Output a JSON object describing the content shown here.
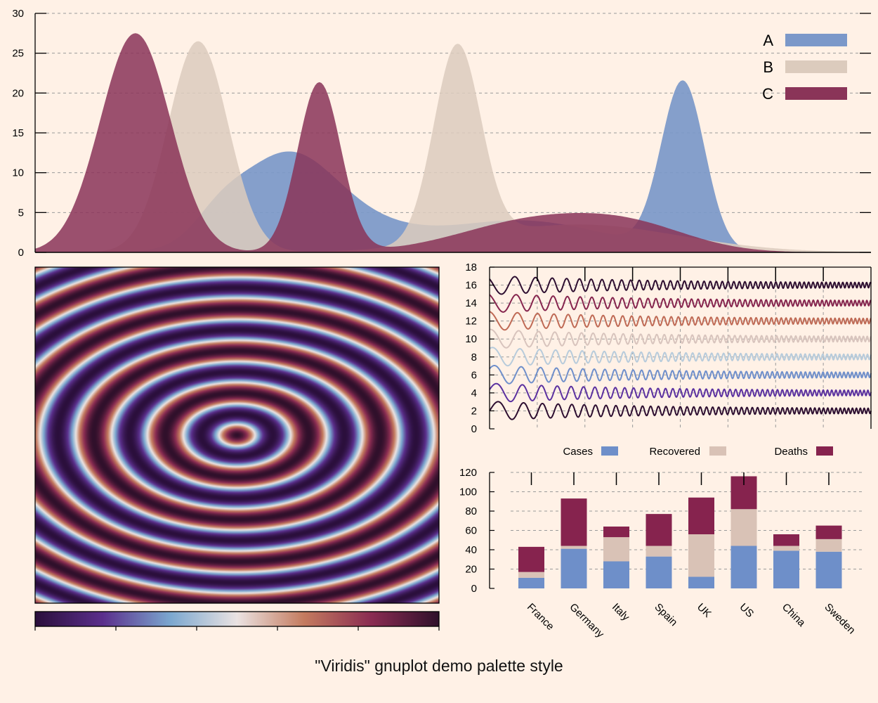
{
  "figure_title": "\"Viridis\" gnuplot demo palette style",
  "colors": {
    "background": "#fff1e6",
    "A": "#7b98c9",
    "B": "#dccbbd",
    "C": "#8a3458",
    "cases": "#6e8fc9",
    "recovered": "#d9c2b6",
    "deaths": "#86234e",
    "axis": "#000000",
    "grid": "#9a9a9a"
  },
  "chart_data": [
    {
      "id": "distributions",
      "type": "area",
      "title": "",
      "xlabel": "",
      "ylabel": "",
      "x_range": [
        0,
        100
      ],
      "ylim": [
        0,
        30
      ],
      "yticks": [
        "0",
        "5",
        "10",
        "15",
        "20",
        "25",
        "30"
      ],
      "grid": true,
      "legend_position": "top-right",
      "series": [
        {
          "name": "A",
          "components": [
            {
              "center": 30,
              "width": 6.0,
              "height": 12.0
            },
            {
              "center": 22,
              "width": 3.0,
              "height": 2.5
            },
            {
              "center": 58,
              "width": 10.0,
              "height": 4.0
            },
            {
              "center": 77.5,
              "width": 2.6,
              "height": 21.0
            },
            {
              "center": 40,
              "width": 6.0,
              "height": 2.0
            }
          ]
        },
        {
          "name": "B",
          "components": [
            {
              "center": 19.5,
              "width": 3.6,
              "height": 26.5
            },
            {
              "center": 50.5,
              "width": 2.8,
              "height": 24.5
            },
            {
              "center": 65,
              "width": 12.0,
              "height": 3.5
            }
          ]
        },
        {
          "name": "C",
          "components": [
            {
              "center": 12,
              "width": 4.2,
              "height": 27.5
            },
            {
              "center": 34,
              "width": 2.6,
              "height": 21.3
            },
            {
              "center": 60,
              "width": 9.0,
              "height": 4.0
            },
            {
              "center": 72,
              "width": 7.0,
              "height": 2.5
            }
          ]
        }
      ]
    },
    {
      "id": "interference",
      "type": "heatmap",
      "function": "cos(r/4), r = sqrt(x^2/2 + y^2) over x,y in [-100,100]",
      "colorbar": {
        "ticks": 6,
        "labels": []
      },
      "palette": [
        "#2b0f3c",
        "#5b2f8c",
        "#7ba7cf",
        "#ebe3e2",
        "#c47b5f",
        "#8a2c52",
        "#30102b"
      ]
    },
    {
      "id": "damped-waves",
      "type": "line",
      "ylim": [
        0,
        18
      ],
      "yticks": [
        "0",
        "2",
        "4",
        "6",
        "8",
        "10",
        "12",
        "14",
        "16",
        "18"
      ],
      "grid": true,
      "series": [
        {
          "offset": 2,
          "color": "#2d0e30"
        },
        {
          "offset": 4,
          "color": "#5b31a0"
        },
        {
          "offset": 6,
          "color": "#6f8fcb"
        },
        {
          "offset": 8,
          "color": "#b7cbdb"
        },
        {
          "offset": 10,
          "color": "#d8c4bd"
        },
        {
          "offset": 12,
          "color": "#bf6a55"
        },
        {
          "offset": 14,
          "color": "#86254e"
        },
        {
          "offset": 16,
          "color": "#2d0e30"
        }
      ]
    },
    {
      "id": "covid-bars",
      "type": "bar",
      "stacked": true,
      "categories": [
        "France",
        "Germany",
        "Italy",
        "Spain",
        "UK",
        "US",
        "China",
        "Sweden"
      ],
      "ylim": [
        0,
        120
      ],
      "yticks": [
        "0",
        "20",
        "40",
        "60",
        "80",
        "100",
        "120"
      ],
      "grid": true,
      "legend_position": "top",
      "series": [
        {
          "name": "Cases",
          "values": [
            11,
            41,
            28,
            33,
            12,
            44,
            39,
            38
          ]
        },
        {
          "name": "Recovered",
          "values": [
            6,
            3,
            25,
            11,
            44,
            38,
            5,
            13
          ]
        },
        {
          "name": "Deaths",
          "values": [
            26,
            49,
            11,
            33,
            38,
            34,
            12,
            14
          ]
        }
      ]
    }
  ]
}
